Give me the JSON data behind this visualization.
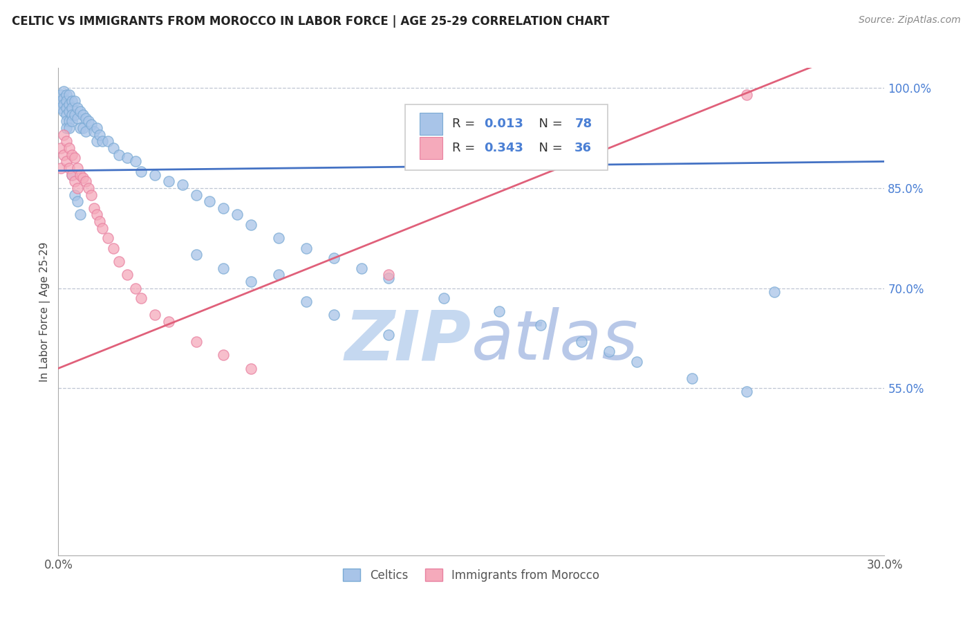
{
  "title": "CELTIC VS IMMIGRANTS FROM MOROCCO IN LABOR FORCE | AGE 25-29 CORRELATION CHART",
  "source": "Source: ZipAtlas.com",
  "ylabel_label": "In Labor Force | Age 25-29",
  "xlim": [
    0.0,
    0.3
  ],
  "ylim": [
    0.3,
    1.03
  ],
  "grid_yticks": [
    0.55,
    0.7,
    0.85,
    1.0
  ],
  "shown_yticks": [
    0.55,
    0.7,
    0.85,
    1.0
  ],
  "shown_ytick_labels": [
    "55.0%",
    "70.0%",
    "85.0%",
    "100.0%"
  ],
  "xtick_vals": [
    0.0,
    0.3
  ],
  "xtick_labels": [
    "0.0%",
    "30.0%"
  ],
  "R_celtics": 0.013,
  "N_celtics": 78,
  "R_morocco": 0.343,
  "N_morocco": 36,
  "celtics_color": "#a8c4e8",
  "celtics_edge": "#7aaad4",
  "morocco_color": "#f5aabb",
  "morocco_edge": "#e880a0",
  "trendline_celtics_color": "#4472c4",
  "trendline_morocco_color": "#e0607a",
  "watermark_color": "#d0e4f5",
  "background_color": "#ffffff",
  "title_fontsize": 12,
  "source_fontsize": 10,
  "celtics_x": [
    0.001,
    0.001,
    0.001,
    0.002,
    0.002,
    0.002,
    0.002,
    0.003,
    0.003,
    0.003,
    0.003,
    0.003,
    0.003,
    0.004,
    0.004,
    0.004,
    0.004,
    0.004,
    0.005,
    0.005,
    0.005,
    0.005,
    0.006,
    0.006,
    0.007,
    0.007,
    0.008,
    0.008,
    0.009,
    0.009,
    0.01,
    0.01,
    0.011,
    0.012,
    0.013,
    0.014,
    0.014,
    0.015,
    0.016,
    0.018,
    0.02,
    0.022,
    0.025,
    0.028,
    0.03,
    0.035,
    0.04,
    0.045,
    0.05,
    0.055,
    0.06,
    0.065,
    0.07,
    0.08,
    0.09,
    0.1,
    0.11,
    0.12,
    0.14,
    0.16,
    0.175,
    0.19,
    0.2,
    0.21,
    0.23,
    0.25,
    0.005,
    0.006,
    0.007,
    0.008,
    0.05,
    0.06,
    0.07,
    0.08,
    0.09,
    0.1,
    0.12,
    0.26
  ],
  "celtics_y": [
    0.99,
    0.98,
    0.97,
    0.995,
    0.985,
    0.975,
    0.965,
    0.99,
    0.98,
    0.97,
    0.96,
    0.95,
    0.94,
    0.99,
    0.975,
    0.965,
    0.95,
    0.94,
    0.98,
    0.97,
    0.96,
    0.95,
    0.98,
    0.96,
    0.97,
    0.955,
    0.965,
    0.94,
    0.96,
    0.94,
    0.955,
    0.935,
    0.95,
    0.945,
    0.935,
    0.94,
    0.92,
    0.93,
    0.92,
    0.92,
    0.91,
    0.9,
    0.895,
    0.89,
    0.875,
    0.87,
    0.86,
    0.855,
    0.84,
    0.83,
    0.82,
    0.81,
    0.795,
    0.775,
    0.76,
    0.745,
    0.73,
    0.715,
    0.685,
    0.665,
    0.645,
    0.62,
    0.605,
    0.59,
    0.565,
    0.545,
    0.87,
    0.84,
    0.83,
    0.81,
    0.75,
    0.73,
    0.71,
    0.72,
    0.68,
    0.66,
    0.63,
    0.695
  ],
  "morocco_x": [
    0.001,
    0.001,
    0.002,
    0.002,
    0.003,
    0.003,
    0.004,
    0.004,
    0.005,
    0.005,
    0.006,
    0.006,
    0.007,
    0.007,
    0.008,
    0.009,
    0.01,
    0.011,
    0.012,
    0.013,
    0.014,
    0.015,
    0.016,
    0.018,
    0.02,
    0.022,
    0.025,
    0.028,
    0.03,
    0.035,
    0.04,
    0.05,
    0.06,
    0.07,
    0.12,
    0.25
  ],
  "morocco_y": [
    0.91,
    0.88,
    0.93,
    0.9,
    0.92,
    0.89,
    0.91,
    0.88,
    0.9,
    0.87,
    0.895,
    0.86,
    0.88,
    0.85,
    0.87,
    0.865,
    0.86,
    0.85,
    0.84,
    0.82,
    0.81,
    0.8,
    0.79,
    0.775,
    0.76,
    0.74,
    0.72,
    0.7,
    0.685,
    0.66,
    0.65,
    0.62,
    0.6,
    0.58,
    0.72,
    0.99
  ],
  "trendline_celtics_intercept": 0.876,
  "trendline_celtics_slope": 0.046,
  "trendline_morocco_intercept": 0.58,
  "trendline_morocco_slope": 1.65
}
